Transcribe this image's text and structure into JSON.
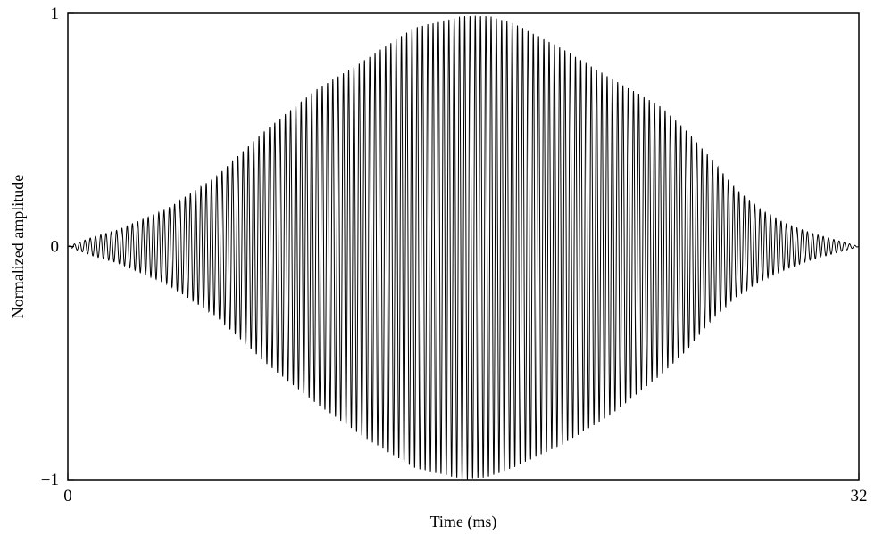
{
  "chart_data": {
    "type": "line",
    "title": "",
    "xlabel": "Time (ms)",
    "ylabel": "Normalized amplitude",
    "xlim": [
      0,
      32
    ],
    "ylim": [
      -1,
      1
    ],
    "x_ticks": [
      {
        "value": 0,
        "label": "0"
      },
      {
        "value": 32,
        "label": "32"
      }
    ],
    "y_ticks": [
      {
        "value": 1,
        "label": "1"
      },
      {
        "value": 0,
        "label": "0"
      },
      {
        "value": -1,
        "label": "−1"
      }
    ],
    "grid": false,
    "legend": "none",
    "line_color": "#000000",
    "signal": {
      "description": "amplitude-modulated oscillating waveform",
      "x_start": 0,
      "x_end": 32,
      "cycles": 150,
      "envelope": {
        "x": [
          0,
          1,
          2,
          4,
          6,
          8,
          10,
          12,
          14,
          16,
          17,
          18,
          20,
          22,
          24,
          25,
          26,
          27,
          28,
          29,
          30,
          31,
          32
        ],
        "upper": [
          0.0,
          0.04,
          0.07,
          0.16,
          0.3,
          0.5,
          0.67,
          0.8,
          0.94,
          0.99,
          0.99,
          0.96,
          0.85,
          0.72,
          0.6,
          0.5,
          0.38,
          0.25,
          0.16,
          0.1,
          0.06,
          0.03,
          0.0
        ],
        "lower": [
          0.0,
          -0.04,
          -0.07,
          -0.16,
          -0.3,
          -0.5,
          -0.67,
          -0.82,
          -0.95,
          -1.0,
          -0.99,
          -0.95,
          -0.85,
          -0.72,
          -0.55,
          -0.45,
          -0.32,
          -0.22,
          -0.15,
          -0.1,
          -0.06,
          -0.03,
          0.0
        ]
      }
    }
  }
}
